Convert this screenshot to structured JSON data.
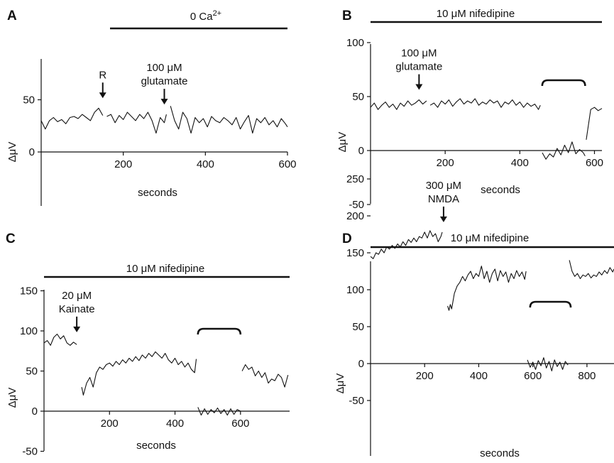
{
  "chart_data": [
    {
      "panel_label": "A",
      "type": "line",
      "treatment_bar": "0 Ca2+",
      "xlabel": "seconds",
      "ylabel": "ΔμV",
      "xticks": [
        200,
        400,
        600
      ],
      "yticks": [
        0,
        50
      ],
      "xlim": [
        0,
        600
      ],
      "ylim": [
        -30,
        60
      ],
      "annotations": [
        {
          "text_lines": [
            "R"
          ],
          "x": 150
        },
        {
          "text_lines": [
            "100 μM",
            "glutamate"
          ],
          "x": 300
        }
      ],
      "segments": [
        {
          "x": [
            0,
            10,
            20,
            30,
            40,
            50,
            60,
            70,
            80,
            90,
            100,
            110,
            120,
            130,
            140,
            150
          ],
          "y": [
            30,
            22,
            30,
            33,
            29,
            31,
            27,
            33,
            34,
            32,
            36,
            33,
            30,
            38,
            42,
            35
          ]
        },
        {
          "x": [
            160,
            170,
            180,
            190,
            200,
            210,
            220,
            230,
            240,
            250,
            260,
            270,
            280,
            290,
            300,
            305
          ],
          "y": [
            34,
            36,
            28,
            35,
            31,
            38,
            34,
            30,
            36,
            32,
            38,
            30,
            18,
            33,
            28,
            36
          ]
        },
        {
          "x": [
            315,
            325,
            335,
            345,
            355,
            365,
            375,
            385,
            395,
            405,
            415,
            425,
            435,
            445,
            455,
            465,
            475,
            485,
            495,
            505,
            515,
            525,
            535,
            545,
            555,
            565,
            575,
            585,
            595,
            600
          ],
          "y": [
            44,
            30,
            22,
            38,
            32,
            18,
            33,
            28,
            32,
            24,
            34,
            30,
            28,
            33,
            30,
            26,
            33,
            22,
            29,
            35,
            18,
            32,
            28,
            33,
            26,
            30,
            24,
            32,
            27,
            24
          ]
        }
      ]
    },
    {
      "panel_label": "B",
      "type": "line",
      "treatment_bar": "10 μM nifedipine",
      "xlabel": "seconds",
      "ylabel": "ΔμV",
      "xticks": [
        200,
        400,
        600
      ],
      "yticks": [
        -50,
        0,
        50,
        100
      ],
      "xlim": [
        0,
        620
      ],
      "ylim": [
        -50,
        100
      ],
      "annotations": [
        {
          "text_lines": [
            "100 μM",
            "glutamate"
          ],
          "x": 130
        }
      ],
      "bracket_x": [
        460,
        575
      ],
      "segments": [
        {
          "x": [
            0,
            10,
            20,
            30,
            40,
            50,
            60,
            70,
            80,
            90,
            100,
            110,
            120,
            130,
            140,
            150
          ],
          "y": [
            40,
            44,
            38,
            42,
            45,
            40,
            43,
            38,
            44,
            41,
            46,
            42,
            44,
            47,
            43,
            46
          ]
        },
        {
          "x": [
            160,
            170,
            180,
            190,
            200,
            210,
            220,
            230,
            240,
            250,
            260,
            270,
            280,
            290,
            300,
            310,
            320,
            330,
            340,
            350,
            360,
            370,
            380,
            390,
            400,
            410,
            420,
            430,
            440,
            450,
            455
          ],
          "y": [
            42,
            44,
            40,
            46,
            43,
            47,
            41,
            45,
            48,
            43,
            46,
            44,
            48,
            42,
            45,
            43,
            47,
            44,
            46,
            40,
            45,
            43,
            47,
            42,
            45,
            40,
            44,
            41,
            43,
            38,
            42
          ]
        },
        {
          "x": [
            460,
            470,
            480,
            490,
            500,
            510,
            520,
            530,
            540,
            550,
            560,
            570,
            575
          ],
          "y": [
            -2,
            -8,
            -3,
            -6,
            2,
            -4,
            5,
            -2,
            8,
            -3,
            1,
            -2,
            -5
          ]
        },
        {
          "x": [
            578,
            590,
            600,
            610,
            620
          ],
          "y": [
            10,
            38,
            40,
            37,
            39
          ]
        }
      ]
    },
    {
      "panel_label": "C",
      "type": "line",
      "treatment_bar": "10 μM nifedipine",
      "xlabel": "seconds",
      "ylabel": "ΔμV",
      "xticks": [
        200,
        400,
        600
      ],
      "yticks": [
        -50,
        0,
        50,
        100,
        150
      ],
      "xlim": [
        0,
        750
      ],
      "ylim": [
        -50,
        150
      ],
      "annotations": [
        {
          "text_lines": [
            "20 μM",
            "Kainate"
          ],
          "x": 100
        }
      ],
      "bracket_x": [
        470,
        600
      ],
      "segments": [
        {
          "x": [
            0,
            10,
            20,
            30,
            40,
            50,
            60,
            70,
            80,
            90,
            100
          ],
          "y": [
            85,
            88,
            82,
            92,
            96,
            90,
            94,
            85,
            82,
            86,
            83
          ]
        },
        {
          "x": [
            115,
            120,
            130,
            140,
            150,
            160,
            170,
            180,
            190,
            200,
            210,
            220,
            230,
            240,
            250,
            260,
            270,
            280,
            290,
            300,
            310,
            320,
            330,
            340,
            350,
            360,
            370,
            380,
            390,
            400,
            410,
            420,
            430,
            440,
            450,
            460,
            465
          ],
          "y": [
            30,
            20,
            35,
            42,
            30,
            48,
            55,
            52,
            58,
            60,
            56,
            62,
            58,
            64,
            60,
            66,
            62,
            68,
            63,
            70,
            66,
            72,
            68,
            74,
            70,
            66,
            72,
            64,
            60,
            66,
            58,
            62,
            55,
            60,
            52,
            48,
            65
          ]
        },
        {
          "x": [
            470,
            480,
            490,
            500,
            510,
            520,
            530,
            540,
            550,
            560,
            570,
            580,
            590,
            600
          ],
          "y": [
            5,
            -5,
            3,
            -4,
            2,
            -2,
            4,
            -3,
            2,
            -5,
            3,
            -4,
            2,
            0
          ]
        },
        {
          "x": [
            605,
            615,
            625,
            635,
            645,
            655,
            665,
            675,
            685,
            695,
            705,
            715,
            725,
            735,
            745
          ],
          "y": [
            50,
            58,
            52,
            55,
            44,
            50,
            42,
            48,
            35,
            40,
            38,
            46,
            42,
            30,
            45
          ]
        }
      ]
    },
    {
      "panel_label": "D",
      "type": "line",
      "treatment_bar": "10 μM nifedipine",
      "xlabel": "seconds",
      "ylabel": "ΔμV",
      "xticks": [
        200,
        400,
        600,
        800
      ],
      "yticks": [
        -50,
        0,
        50,
        100,
        150,
        200,
        250
      ],
      "xlim": [
        0,
        900
      ],
      "ylim": [
        -50,
        250
      ],
      "annotations": [
        {
          "text_lines": [
            "300 μM",
            "NMDA"
          ],
          "x": 270
        }
      ],
      "bracket_x": [
        590,
        740
      ],
      "segments": [
        {
          "x": [
            0,
            10,
            20,
            30,
            40,
            50,
            60,
            70,
            80,
            90,
            100,
            110,
            120,
            130,
            140,
            150,
            160,
            170,
            180,
            190,
            200,
            210,
            220,
            230,
            240,
            250,
            260,
            265
          ],
          "y": [
            145,
            142,
            150,
            148,
            155,
            150,
            158,
            155,
            160,
            156,
            162,
            158,
            165,
            160,
            168,
            164,
            170,
            165,
            172,
            170,
            178,
            170,
            180,
            172,
            176,
            165,
            172,
            178
          ]
        },
        {
          "x": [
            285,
            290,
            295,
            300,
            310,
            320,
            330,
            340,
            350,
            360,
            370,
            380,
            390,
            400,
            410,
            420,
            430,
            440,
            450,
            460,
            470,
            480,
            490,
            500,
            510,
            520,
            530,
            540,
            550,
            560,
            570,
            575
          ],
          "y": [
            78,
            72,
            80,
            74,
            95,
            105,
            110,
            118,
            112,
            120,
            125,
            115,
            122,
            118,
            132,
            115,
            125,
            110,
            122,
            128,
            112,
            126,
            118,
            124,
            110,
            122,
            115,
            126,
            118,
            124,
            114,
            125
          ]
        },
        {
          "x": [
            580,
            590,
            600,
            610,
            620,
            630,
            640,
            650,
            660,
            670,
            680,
            690,
            700,
            710,
            720,
            730
          ],
          "y": [
            5,
            -5,
            2,
            -8,
            4,
            -3,
            8,
            -6,
            3,
            -10,
            5,
            -4,
            2,
            -8,
            3,
            -2
          ]
        },
        {
          "x": [
            735,
            745,
            755,
            765,
            775,
            785,
            795,
            805,
            815,
            825,
            835,
            845,
            855,
            865,
            875,
            885,
            895,
            900
          ],
          "y": [
            140,
            125,
            118,
            122,
            115,
            120,
            118,
            122,
            116,
            120,
            118,
            124,
            120,
            126,
            122,
            130,
            124,
            128
          ]
        }
      ]
    }
  ]
}
